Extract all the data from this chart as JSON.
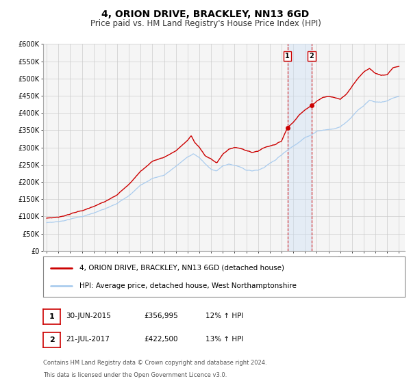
{
  "title": "4, ORION DRIVE, BRACKLEY, NN13 6GD",
  "subtitle": "Price paid vs. HM Land Registry's House Price Index (HPI)",
  "ylim": [
    0,
    600000
  ],
  "yticks": [
    0,
    50000,
    100000,
    150000,
    200000,
    250000,
    300000,
    350000,
    400000,
    450000,
    500000,
    550000,
    600000
  ],
  "ytick_labels": [
    "£0",
    "£50K",
    "£100K",
    "£150K",
    "£200K",
    "£250K",
    "£300K",
    "£350K",
    "£400K",
    "£450K",
    "£500K",
    "£550K",
    "£600K"
  ],
  "xlim_start": 1994.7,
  "xlim_end": 2025.5,
  "xticks": [
    1995,
    1996,
    1997,
    1998,
    1999,
    2000,
    2001,
    2002,
    2003,
    2004,
    2005,
    2006,
    2007,
    2008,
    2009,
    2010,
    2011,
    2012,
    2013,
    2014,
    2015,
    2016,
    2017,
    2018,
    2019,
    2020,
    2021,
    2022,
    2023,
    2024,
    2025
  ],
  "red_line_color": "#cc0000",
  "blue_line_color": "#aaccee",
  "marker_color": "#cc0000",
  "vline_color": "#cc0000",
  "shade_color": "#cce0f5",
  "grid_color": "#cccccc",
  "bg_color": "#f5f5f5",
  "sale1_x": 2015.5,
  "sale1_y": 356995,
  "sale2_x": 2017.55,
  "sale2_y": 422500,
  "sale1_date": "30-JUN-2015",
  "sale1_price": "£356,995",
  "sale1_hpi": "12% ↑ HPI",
  "sale2_date": "21-JUL-2017",
  "sale2_price": "£422,500",
  "sale2_hpi": "13% ↑ HPI",
  "legend_line1": "4, ORION DRIVE, BRACKLEY, NN13 6GD (detached house)",
  "legend_line2": "HPI: Average price, detached house, West Northamptonshire",
  "footnote1": "Contains HM Land Registry data © Crown copyright and database right 2024.",
  "footnote2": "This data is licensed under the Open Government Licence v3.0.",
  "title_fontsize": 10,
  "subtitle_fontsize": 8.5,
  "tick_fontsize": 7,
  "legend_fontsize": 7.5,
  "table_fontsize": 7.5,
  "footnote_fontsize": 6,
  "red_waypoints_x": [
    1995.0,
    1996.0,
    1997.0,
    1998.0,
    1999.0,
    2000.0,
    2001.0,
    2002.0,
    2003.0,
    2004.0,
    2005.0,
    2006.0,
    2007.0,
    2007.3,
    2007.6,
    2008.0,
    2008.5,
    2009.0,
    2009.5,
    2010.0,
    2010.5,
    2011.0,
    2011.5,
    2012.0,
    2012.5,
    2013.0,
    2013.5,
    2014.0,
    2014.5,
    2015.0,
    2015.5,
    2016.0,
    2016.5,
    2017.0,
    2017.55,
    2018.0,
    2018.5,
    2019.0,
    2019.5,
    2020.0,
    2020.5,
    2021.0,
    2021.5,
    2022.0,
    2022.5,
    2023.0,
    2023.5,
    2024.0,
    2024.5,
    2025.0
  ],
  "red_waypoints_y": [
    95000,
    98000,
    107000,
    117000,
    128000,
    143000,
    162000,
    195000,
    230000,
    260000,
    272000,
    290000,
    320000,
    335000,
    315000,
    300000,
    275000,
    268000,
    255000,
    280000,
    295000,
    300000,
    298000,
    292000,
    285000,
    290000,
    300000,
    305000,
    310000,
    318000,
    356995,
    375000,
    395000,
    408000,
    422500,
    435000,
    445000,
    448000,
    445000,
    440000,
    455000,
    478000,
    500000,
    520000,
    530000,
    515000,
    508000,
    510000,
    530000,
    535000
  ],
  "blue_waypoints_x": [
    1995.0,
    1996.0,
    1997.0,
    1998.0,
    1999.0,
    2000.0,
    2001.0,
    2002.0,
    2003.0,
    2004.0,
    2005.0,
    2006.0,
    2007.0,
    2007.5,
    2008.0,
    2008.5,
    2009.0,
    2009.5,
    2010.0,
    2010.5,
    2011.0,
    2011.5,
    2012.0,
    2012.5,
    2013.0,
    2013.5,
    2014.0,
    2014.5,
    2015.0,
    2015.5,
    2016.0,
    2016.5,
    2017.0,
    2017.5,
    2018.0,
    2018.5,
    2019.0,
    2019.5,
    2020.0,
    2020.5,
    2021.0,
    2021.5,
    2022.0,
    2022.5,
    2023.0,
    2023.5,
    2024.0,
    2024.5,
    2025.0
  ],
  "blue_waypoints_y": [
    82000,
    85000,
    92000,
    100000,
    109000,
    122000,
    137000,
    162000,
    190000,
    210000,
    220000,
    245000,
    272000,
    282000,
    270000,
    252000,
    238000,
    232000,
    246000,
    252000,
    248000,
    244000,
    235000,
    232000,
    235000,
    242000,
    255000,
    265000,
    278000,
    292000,
    306000,
    316000,
    328000,
    336000,
    348000,
    350000,
    352000,
    354000,
    360000,
    374000,
    390000,
    408000,
    422000,
    438000,
    432000,
    430000,
    434000,
    442000,
    448000
  ]
}
